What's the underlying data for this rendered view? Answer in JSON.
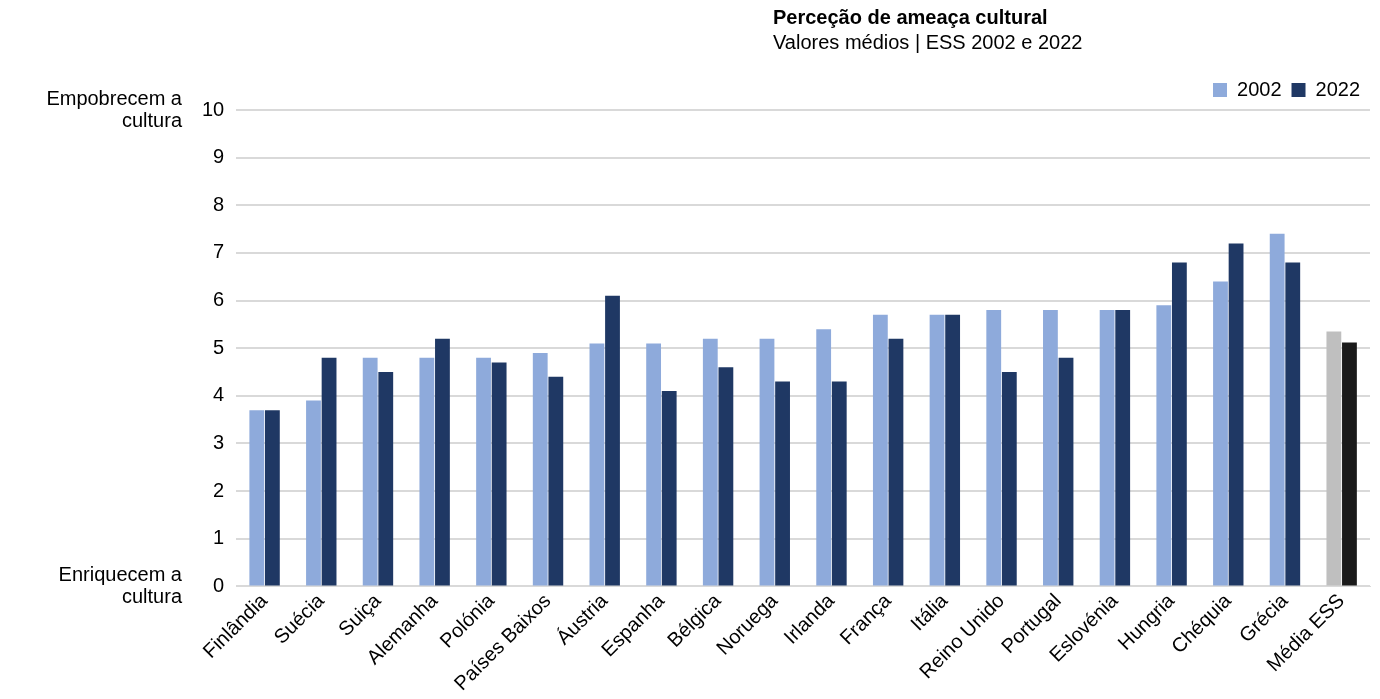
{
  "chart_data": {
    "type": "bar",
    "title": "Perceção de ameaça cultural",
    "subtitle": "Valores médios | ESS 2002 e 2022",
    "categories": [
      "Finlândia",
      "Suécia",
      "Suiça",
      "Alemanha",
      "Polónia",
      "Países Baixos",
      "Áustria",
      "Espanha",
      "Bélgica",
      "Noruega",
      "Irlanda",
      "França",
      "Itália",
      "Reino Unido",
      "Portugal",
      "Eslovénia",
      "Hungria",
      "Chéquia",
      "Grécia",
      "Média ESS"
    ],
    "series": [
      {
        "name": "2002",
        "color": "#8eaadb",
        "colors": [
          "#8eaadb",
          "#8eaadb",
          "#8eaadb",
          "#8eaadb",
          "#8eaadb",
          "#8eaadb",
          "#8eaadb",
          "#8eaadb",
          "#8eaadb",
          "#8eaadb",
          "#8eaadb",
          "#8eaadb",
          "#8eaadb",
          "#8eaadb",
          "#8eaadb",
          "#8eaadb",
          "#8eaadb",
          "#8eaadb",
          "#8eaadb",
          "#bfbfbf"
        ],
        "values": [
          3.7,
          3.9,
          4.8,
          4.8,
          4.8,
          4.9,
          5.1,
          5.1,
          5.2,
          5.2,
          5.4,
          5.7,
          5.7,
          5.8,
          5.8,
          5.8,
          5.9,
          6.4,
          7.4,
          5.35
        ]
      },
      {
        "name": "2022",
        "color": "#1f3864",
        "colors": [
          "#1f3864",
          "#1f3864",
          "#1f3864",
          "#1f3864",
          "#1f3864",
          "#1f3864",
          "#1f3864",
          "#1f3864",
          "#1f3864",
          "#1f3864",
          "#1f3864",
          "#1f3864",
          "#1f3864",
          "#1f3864",
          "#1f3864",
          "#1f3864",
          "#1f3864",
          "#1f3864",
          "#1f3864",
          "#1a1a1a"
        ],
        "values": [
          3.7,
          4.8,
          4.5,
          5.2,
          4.7,
          4.4,
          6.1,
          4.1,
          4.6,
          4.3,
          4.3,
          5.2,
          5.7,
          4.5,
          4.8,
          5.8,
          6.8,
          7.2,
          6.8,
          5.12
        ]
      }
    ],
    "ylim": [
      0,
      10
    ],
    "yticks": [
      0,
      1,
      2,
      3,
      4,
      5,
      6,
      7,
      8,
      9,
      10
    ],
    "grid": "y",
    "legend": "top right",
    "annotations": [
      "Empobrecem a cultura",
      "Enriquecem a cultura"
    ]
  }
}
